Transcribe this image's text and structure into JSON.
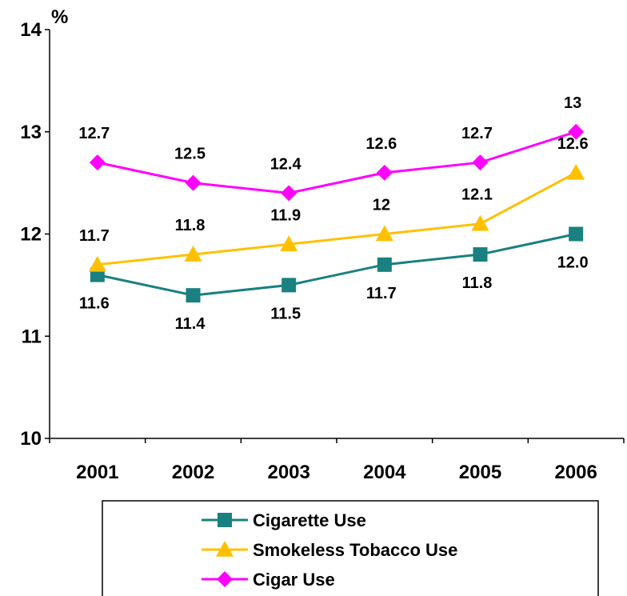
{
  "chart_data": {
    "type": "line",
    "ylabel": "%",
    "ylim": [
      10,
      14
    ],
    "yticks": [
      10,
      11,
      12,
      13,
      14
    ],
    "categories": [
      "2001",
      "2002",
      "2003",
      "2004",
      "2005",
      "2006"
    ],
    "grid": false,
    "legend": "bottom",
    "series": [
      {
        "name": "Cigarette Use",
        "values": [
          11.6,
          11.4,
          11.5,
          11.7,
          11.8,
          12.0
        ],
        "labels": [
          "11.6",
          "11.4",
          "11.5",
          "11.7",
          "11.8",
          "12.0"
        ],
        "color": "#1A8080",
        "marker": "square",
        "label_position": "below"
      },
      {
        "name": "Smokeless Tobacco Use",
        "values": [
          11.7,
          11.8,
          11.9,
          12.0,
          12.1,
          12.6
        ],
        "labels": [
          "11.7",
          "11.8",
          "11.9",
          "12",
          "12.1",
          "12.6"
        ],
        "color": "#FFC000",
        "marker": "triangle",
        "label_position": "above"
      },
      {
        "name": "Cigar Use",
        "values": [
          12.7,
          12.5,
          12.4,
          12.6,
          12.7,
          13.0
        ],
        "labels": [
          "12.7",
          "12.5",
          "12.4",
          "12.6",
          "12.7",
          "13"
        ],
        "color": "#FF00FF",
        "marker": "diamond",
        "label_position": "above"
      }
    ]
  }
}
